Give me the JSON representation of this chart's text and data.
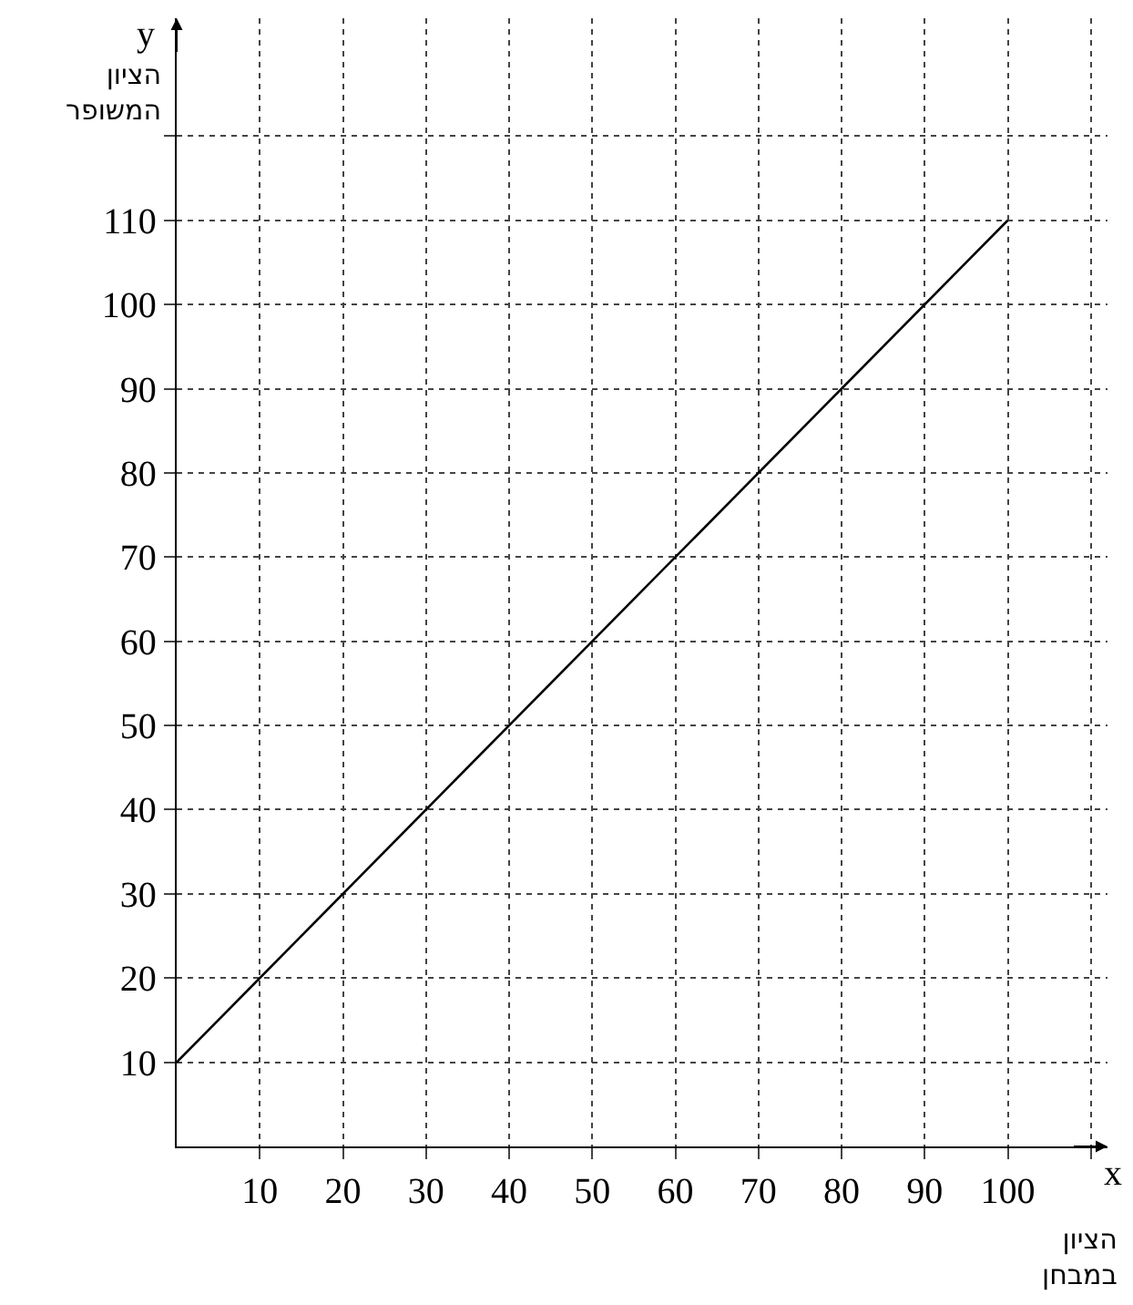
{
  "chart_data": {
    "type": "line",
    "xlabel": "x",
    "ylabel": "y",
    "annotations": [
      "הציון\nהמשופר",
      "הציון\nבמבחן"
    ],
    "x": [
      0,
      100
    ],
    "series": [
      {
        "color": "#000000",
        "values": [
          10,
          110
        ]
      }
    ],
    "xlim": [
      0,
      112
    ],
    "ylim": [
      0,
      134
    ],
    "xticks": [
      10,
      20,
      30,
      40,
      50,
      60,
      70,
      80,
      90,
      100,
      {
        "value": 110,
        "label": null
      }
    ],
    "yticks": [
      10,
      20,
      30,
      40,
      50,
      60,
      70,
      80,
      90,
      100,
      110,
      {
        "value": 120,
        "label": null
      }
    ],
    "grid": true,
    "marker": "none",
    "line_style": "solid"
  }
}
